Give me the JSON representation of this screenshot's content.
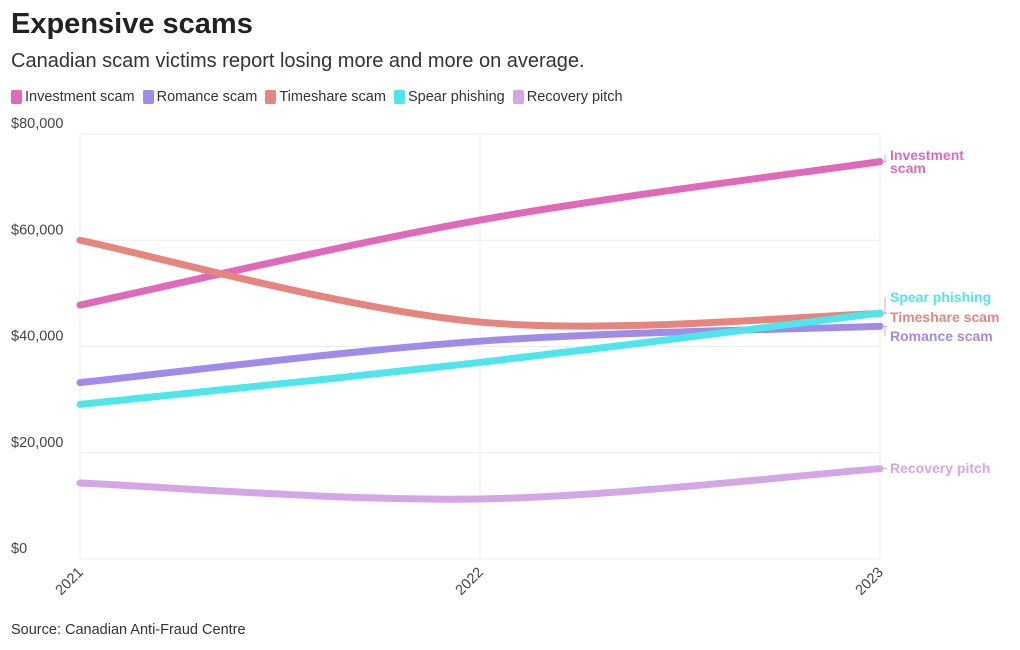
{
  "title": "Expensive scams",
  "subtitle": "Canadian scam victims report losing more and more on average.",
  "source": "Source: Canadian Anti-Fraud Centre",
  "chart_data": {
    "type": "line",
    "x": [
      "2021",
      "2022",
      "2023"
    ],
    "ylim": [
      0,
      80000
    ],
    "yticks": [
      0,
      20000,
      40000,
      60000,
      80000
    ],
    "ytick_labels": [
      "$0",
      "$20,000",
      "$40,000",
      "$60,000",
      "$80,000"
    ],
    "grid": true,
    "legend_position": "top-left",
    "series": [
      {
        "name": "Investment scam",
        "color": "#df6ab9",
        "values": [
          47800,
          63800,
          74800
        ],
        "end_label": [
          "Investment",
          "scam"
        ]
      },
      {
        "name": "Romance scam",
        "color": "#a08ce8",
        "values": [
          33200,
          41000,
          43800
        ],
        "end_label": [
          "Romance scam"
        ]
      },
      {
        "name": "Timeshare scam",
        "color": "#e5857e",
        "values": [
          60000,
          44600,
          46200
        ],
        "end_label": [
          "Timeshare scam"
        ]
      },
      {
        "name": "Spear phishing",
        "color": "#4ee6ea",
        "values": [
          29100,
          37000,
          46300
        ],
        "end_label": [
          "Spear phishing"
        ]
      },
      {
        "name": "Recovery pitch",
        "color": "#d4a6e6",
        "values": [
          14300,
          11300,
          17000
        ],
        "end_label": [
          "Recovery pitch"
        ]
      }
    ]
  }
}
